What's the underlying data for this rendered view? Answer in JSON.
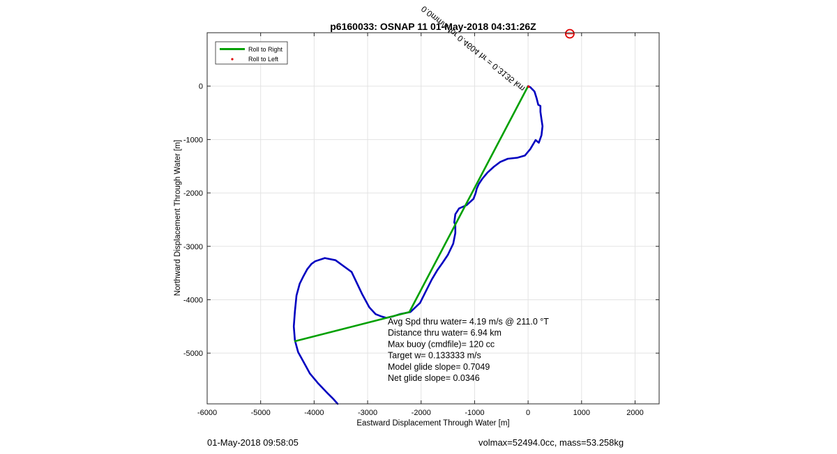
{
  "footer": {
    "left": "01-May-2018 09:58:05",
    "right": "volmax=52494.0cc, mass=53.258kg"
  },
  "chart_data": {
    "type": "line",
    "title": "p6160033: OSNAP 11 01-May-2018 04:31:26Z",
    "xlabel": "Eastward Displacement Through Water [m]",
    "ylabel": "Northward Displacement Through Water [m]",
    "xlim": [
      -6000,
      2450
    ],
    "ylim": [
      -5950,
      1000
    ],
    "xticks": [
      -6000,
      -5000,
      -4000,
      -3000,
      -2000,
      -1000,
      0,
      1000,
      2000
    ],
    "yticks": [
      -5000,
      -4000,
      -3000,
      -2000,
      -1000,
      0
    ],
    "grid": true,
    "legend": {
      "placement": "top-left",
      "entries": [
        {
          "name": "Roll to Right",
          "color": "#00a000",
          "style": "line"
        },
        {
          "name": "Roll to Left",
          "color": "#e00000",
          "style": "marker"
        }
      ]
    },
    "series": [
      {
        "kind": "track",
        "color": "#0000c0",
        "x": [
          -3560,
          -3640,
          -3760,
          -3930,
          -4080,
          -4200,
          -4300,
          -4360,
          -4380,
          -4360,
          -4330,
          -4270,
          -4200,
          -4130,
          -4050,
          -3980,
          -3800,
          -3600,
          -3300,
          -3100,
          -2970,
          -2850,
          -2750,
          -2650,
          -2520,
          -2400,
          -2200,
          -2020,
          -1900,
          -1800,
          -1700,
          -1600,
          -1500,
          -1400,
          -1360,
          -1360,
          -1380,
          -1360,
          -1290,
          -1150,
          -1020,
          -980,
          -960,
          -920,
          -860,
          -760,
          -640,
          -520,
          -380,
          -200,
          -60,
          40,
          140,
          200,
          250,
          270,
          250,
          230,
          230,
          190,
          160,
          120,
          80,
          40,
          0
        ],
        "y": [
          -5950,
          -5860,
          -5740,
          -5560,
          -5380,
          -5160,
          -4980,
          -4760,
          -4500,
          -4220,
          -3920,
          -3700,
          -3560,
          -3430,
          -3330,
          -3280,
          -3220,
          -3260,
          -3480,
          -3900,
          -4140,
          -4270,
          -4310,
          -4340,
          -4310,
          -4270,
          -4230,
          -4060,
          -3820,
          -3620,
          -3450,
          -3310,
          -3160,
          -2950,
          -2750,
          -2600,
          -2550,
          -2400,
          -2290,
          -2230,
          -2110,
          -2000,
          -1920,
          -1830,
          -1740,
          -1620,
          -1510,
          -1420,
          -1360,
          -1340,
          -1300,
          -1180,
          -1010,
          -1060,
          -920,
          -750,
          -620,
          -480,
          -370,
          -350,
          -230,
          -100,
          -60,
          -20,
          0
        ]
      },
      {
        "name": "Roll to Right",
        "color": "#00a000",
        "x": [
          0,
          -2220,
          -4370
        ],
        "y": [
          0,
          -4230,
          -4780
        ]
      },
      {
        "name": "Roll to Left",
        "color": "#e00000",
        "x": [
          10
        ],
        "y": [
          -10
        ]
      }
    ],
    "markers": [
      {
        "kind": "target-circle",
        "color": "#e00000",
        "x": 780,
        "y": 980
      }
    ],
    "annotations": {
      "rotated_label": "0.0mm/s for 0.4604 hr = 0.3135 km",
      "stats": [
        "Avg Spd thru water=  4.19 m/s @ 211.0 °T",
        "Distance thru water=  6.94 km",
        "Max buoy (cmdfile)= 120 cc",
        "Target w= 0.133333 m/s",
        "Model glide slope= 0.7049",
        "Net glide slope= 0.0346"
      ]
    }
  }
}
